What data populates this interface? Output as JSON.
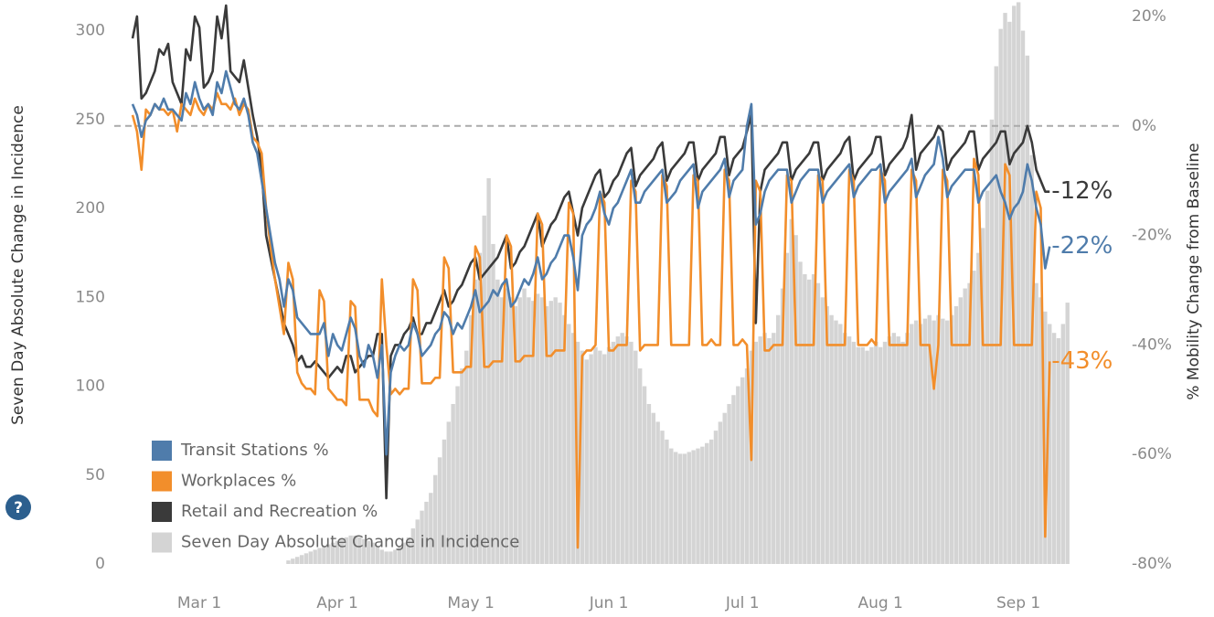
{
  "chart_data": {
    "type": "combo",
    "help_icon": "?",
    "y_label": "Seven Day Absolute Change in Incidence",
    "y2_label": "% Mobility Change from Baseline",
    "ylim": [
      0,
      308
    ],
    "yticks": [
      0,
      50,
      100,
      150,
      200,
      250,
      300
    ],
    "y2lim": [
      -80,
      20
    ],
    "y2ticks": [
      {
        "value": -80,
        "label": "-80%"
      },
      {
        "value": -60,
        "label": "-60%"
      },
      {
        "value": -40,
        "label": "-40%"
      },
      {
        "value": -20,
        "label": "-20%"
      },
      {
        "value": 0,
        "label": "0%"
      },
      {
        "value": 20,
        "label": "20%"
      }
    ],
    "y2_reference_line": 0,
    "legend": "lower left",
    "categories": [
      null,
      null,
      null,
      null,
      null,
      null,
      null,
      null,
      null,
      null,
      null,
      null,
      null,
      null,
      null,
      "Mar 1",
      null,
      null,
      null,
      null,
      null,
      null,
      null,
      null,
      null,
      null,
      null,
      null,
      null,
      null,
      null,
      null,
      null,
      null,
      null,
      null,
      null,
      null,
      null,
      null,
      null,
      null,
      null,
      null,
      null,
      null,
      "Apr 1",
      null,
      null,
      null,
      null,
      null,
      null,
      null,
      null,
      null,
      null,
      null,
      null,
      null,
      null,
      null,
      null,
      null,
      null,
      null,
      null,
      null,
      null,
      null,
      null,
      null,
      null,
      null,
      null,
      null,
      "May 1",
      null,
      null,
      null,
      null,
      null,
      null,
      null,
      null,
      null,
      null,
      null,
      null,
      null,
      null,
      null,
      null,
      null,
      null,
      null,
      null,
      null,
      null,
      null,
      null,
      null,
      null,
      null,
      null,
      null,
      null,
      "Jun 1",
      null,
      null,
      null,
      null,
      null,
      null,
      null,
      null,
      null,
      null,
      null,
      null,
      null,
      null,
      null,
      null,
      null,
      null,
      null,
      null,
      null,
      null,
      null,
      null,
      null,
      null,
      null,
      null,
      null,
      "Jul 1",
      null,
      null,
      null,
      null,
      null,
      null,
      null,
      null,
      null,
      null,
      null,
      null,
      null,
      null,
      null,
      null,
      null,
      null,
      null,
      null,
      null,
      null,
      null,
      null,
      null,
      null,
      null,
      null,
      null,
      null,
      "Aug 1",
      null,
      null,
      null,
      null,
      null,
      null,
      null,
      null,
      null,
      null,
      null,
      null,
      null,
      null,
      null,
      null,
      null,
      null,
      null,
      null,
      null,
      null,
      null,
      null,
      null,
      null,
      null,
      null,
      null,
      null,
      "Sep 1",
      null,
      null,
      null,
      null,
      null,
      null,
      null,
      null,
      null,
      null,
      null
    ],
    "series": [
      {
        "name": "Transit Stations %",
        "type": "line",
        "axis": "y2",
        "color": "#4f7cab",
        "last_label": "-22%",
        "values": [
          4,
          2,
          -2,
          1,
          2,
          4,
          3,
          5,
          3,
          3,
          2,
          1,
          6,
          4,
          8,
          5,
          3,
          4,
          2,
          8,
          6,
          10,
          7,
          4,
          3,
          5,
          2,
          -3,
          -5,
          -10,
          -15,
          -20,
          -25,
          -28,
          -33,
          -28,
          -30,
          -35,
          -36,
          -37,
          -38,
          -38,
          -38,
          -36,
          -42,
          -38,
          -40,
          -41,
          -38,
          -35,
          -37,
          -42,
          -44,
          -40,
          -42,
          -46,
          -40,
          -60,
          -45,
          -42,
          -40,
          -41,
          -40,
          -36,
          -38,
          -42,
          -41,
          -40,
          -38,
          -37,
          -34,
          -35,
          -38,
          -36,
          -37,
          -35,
          -33,
          -30,
          -34,
          -33,
          -32,
          -30,
          -31,
          -29,
          -28,
          -33,
          -32,
          -30,
          -28,
          -29,
          -27,
          -24,
          -28,
          -27,
          -25,
          -24,
          -22,
          -20,
          -20,
          -24,
          -30,
          -20,
          -18,
          -17,
          -15,
          -12,
          -16,
          -18,
          -15,
          -14,
          -12,
          -10,
          -8,
          -14,
          -14,
          -12,
          -11,
          -10,
          -9,
          -8,
          -14,
          -13,
          -12,
          -10,
          -9,
          -8,
          -7,
          -15,
          -12,
          -11,
          -10,
          -9,
          -8,
          -6,
          -13,
          -10,
          -9,
          -8,
          0,
          4,
          -18,
          -16,
          -12,
          -10,
          -9,
          -8,
          -8,
          -8,
          -14,
          -12,
          -10,
          -9,
          -8,
          -8,
          -8,
          -14,
          -12,
          -11,
          -10,
          -9,
          -8,
          -7,
          -13,
          -11,
          -10,
          -9,
          -8,
          -8,
          -7,
          -14,
          -12,
          -11,
          -10,
          -9,
          -8,
          -6,
          -13,
          -11,
          -9,
          -8,
          -7,
          -2,
          -6,
          -13,
          -11,
          -10,
          -9,
          -8,
          -8,
          -8,
          -14,
          -12,
          -11,
          -10,
          -9,
          -12,
          -14,
          -17,
          -15,
          -14,
          -12,
          -7,
          -10,
          -15,
          -18,
          -26,
          -22,
          null,
          null,
          null,
          null
        ]
      },
      {
        "name": "Workplaces %",
        "type": "line",
        "axis": "y2",
        "color": "#f28e2b",
        "last_label": "-43%",
        "values": [
          2,
          -1,
          -8,
          3,
          2,
          4,
          3,
          3,
          2,
          3,
          -1,
          4,
          3,
          2,
          5,
          3,
          2,
          4,
          3,
          6,
          4,
          4,
          3,
          5,
          2,
          4,
          3,
          -2,
          -3,
          -5,
          -15,
          -22,
          -28,
          -33,
          -38,
          -25,
          -28,
          -45,
          -47,
          -48,
          -48,
          -49,
          -30,
          -32,
          -48,
          -49,
          -50,
          -50,
          -51,
          -32,
          -33,
          -50,
          -50,
          -50,
          -52,
          -53,
          -28,
          -40,
          -49,
          -48,
          -49,
          -48,
          -48,
          -28,
          -30,
          -47,
          -47,
          -47,
          -46,
          -46,
          -24,
          -26,
          -45,
          -45,
          -45,
          -44,
          -44,
          -22,
          -24,
          -44,
          -44,
          -43,
          -43,
          -43,
          -20,
          -22,
          -43,
          -43,
          -42,
          -42,
          -42,
          -16,
          -18,
          -42,
          -42,
          -41,
          -41,
          -41,
          -14,
          -16,
          -77,
          -42,
          -41,
          -41,
          -40,
          -12,
          -14,
          -41,
          -41,
          -40,
          -40,
          -40,
          -10,
          -12,
          -41,
          -40,
          -40,
          -40,
          -40,
          -9,
          -11,
          -40,
          -40,
          -40,
          -40,
          -40,
          -9,
          -10,
          -40,
          -40,
          -39,
          -40,
          -40,
          -8,
          -10,
          -40,
          -40,
          -39,
          -40,
          -61,
          -10,
          -12,
          -41,
          -41,
          -40,
          -40,
          -40,
          -9,
          -10,
          -40,
          -40,
          -40,
          -40,
          -40,
          -9,
          -10,
          -40,
          -40,
          -40,
          -40,
          -40,
          -8,
          -10,
          -40,
          -40,
          -40,
          -39,
          -40,
          -8,
          -10,
          -40,
          -40,
          -40,
          -40,
          -40,
          -8,
          -10,
          -40,
          -40,
          -40,
          -48,
          -40,
          -8,
          -10,
          -40,
          -40,
          -40,
          -40,
          -40,
          -6,
          -9,
          -40,
          -40,
          -40,
          -40,
          -40,
          -7,
          -9,
          -40,
          -40,
          -40,
          -40,
          -40,
          -12,
          -15,
          -75,
          -43,
          null,
          null,
          null,
          null
        ]
      },
      {
        "name": "Retail and Recreation %",
        "type": "line",
        "axis": "y2",
        "color": "#3a3a3a",
        "last_label": "-12%",
        "values": [
          16,
          20,
          5,
          6,
          8,
          10,
          14,
          13,
          15,
          8,
          6,
          4,
          14,
          12,
          20,
          18,
          7,
          8,
          10,
          20,
          16,
          22,
          10,
          9,
          8,
          12,
          7,
          2,
          -2,
          -8,
          -20,
          -24,
          -28,
          -32,
          -36,
          -38,
          -40,
          -43,
          -42,
          -44,
          -44,
          -43,
          -44,
          -45,
          -46,
          -45,
          -44,
          -45,
          -42,
          -42,
          -45,
          -44,
          -43,
          -42,
          -42,
          -38,
          -38,
          -68,
          -42,
          -40,
          -40,
          -38,
          -37,
          -35,
          -38,
          -38,
          -36,
          -36,
          -34,
          -32,
          -30,
          -33,
          -32,
          -30,
          -29,
          -27,
          -25,
          -24,
          -28,
          -27,
          -26,
          -25,
          -24,
          -22,
          -20,
          -26,
          -25,
          -23,
          -22,
          -20,
          -18,
          -16,
          -22,
          -20,
          -18,
          -17,
          -15,
          -13,
          -12,
          -16,
          -20,
          -15,
          -13,
          -11,
          -9,
          -8,
          -13,
          -12,
          -10,
          -9,
          -7,
          -5,
          -4,
          -11,
          -9,
          -8,
          -7,
          -6,
          -4,
          -3,
          -10,
          -8,
          -7,
          -6,
          -5,
          -3,
          -3,
          -10,
          -8,
          -7,
          -6,
          -5,
          -2,
          -2,
          -9,
          -6,
          -5,
          -4,
          -1,
          2,
          -36,
          -12,
          -8,
          -7,
          -6,
          -5,
          -3,
          -3,
          -10,
          -8,
          -7,
          -6,
          -5,
          -3,
          -3,
          -10,
          -8,
          -7,
          -6,
          -5,
          -3,
          -2,
          -10,
          -8,
          -7,
          -6,
          -5,
          -2,
          -2,
          -9,
          -7,
          -6,
          -5,
          -4,
          -2,
          2,
          -8,
          -5,
          -4,
          -3,
          -2,
          0,
          -1,
          -8,
          -6,
          -5,
          -4,
          -3,
          -1,
          -1,
          -8,
          -6,
          -5,
          -4,
          -3,
          -1,
          -1,
          -7,
          -5,
          -4,
          -3,
          0,
          -3,
          -8,
          -10,
          -12,
          -12,
          null,
          null,
          null,
          null
        ]
      },
      {
        "name": "Seven Day Absolute Change in Incidence",
        "type": "bar",
        "axis": "y",
        "color": "#d4d4d4",
        "values": [
          null,
          null,
          null,
          null,
          null,
          null,
          null,
          null,
          null,
          null,
          null,
          null,
          null,
          null,
          null,
          null,
          null,
          null,
          null,
          null,
          null,
          null,
          null,
          null,
          null,
          null,
          null,
          null,
          null,
          null,
          null,
          null,
          null,
          null,
          null,
          2,
          3,
          4,
          5,
          6,
          7,
          8,
          9,
          10,
          11,
          12,
          13,
          14,
          15,
          16,
          16,
          15,
          14,
          13,
          12,
          10,
          8,
          7,
          7,
          8,
          10,
          12,
          15,
          20,
          25,
          30,
          35,
          40,
          50,
          60,
          70,
          80,
          90,
          100,
          110,
          120,
          140,
          160,
          175,
          196,
          217,
          180,
          160,
          150,
          155,
          150,
          145,
          150,
          155,
          150,
          148,
          152,
          150,
          145,
          148,
          150,
          147,
          140,
          135,
          130,
          125,
          120,
          115,
          118,
          122,
          120,
          118,
          122,
          125,
          128,
          130,
          128,
          125,
          120,
          110,
          100,
          90,
          85,
          80,
          75,
          70,
          65,
          63,
          62,
          62,
          63,
          64,
          65,
          66,
          68,
          70,
          75,
          80,
          85,
          90,
          95,
          100,
          105,
          110,
          120,
          125,
          128,
          130,
          127,
          130,
          140,
          155,
          175,
          194,
          185,
          170,
          163,
          160,
          163,
          158,
          150,
          145,
          140,
          137,
          135,
          130,
          128,
          125,
          122,
          122,
          120,
          122,
          125,
          122,
          125,
          128,
          130,
          128,
          125,
          130,
          135,
          137,
          135,
          138,
          140,
          137,
          140,
          138,
          137,
          140,
          145,
          150,
          155,
          158,
          165,
          175,
          189,
          210,
          250,
          280,
          301,
          310,
          305,
          314,
          316,
          300,
          286,
          230,
          158,
          150,
          142,
          135,
          130,
          127,
          135,
          147
        ]
      }
    ]
  }
}
